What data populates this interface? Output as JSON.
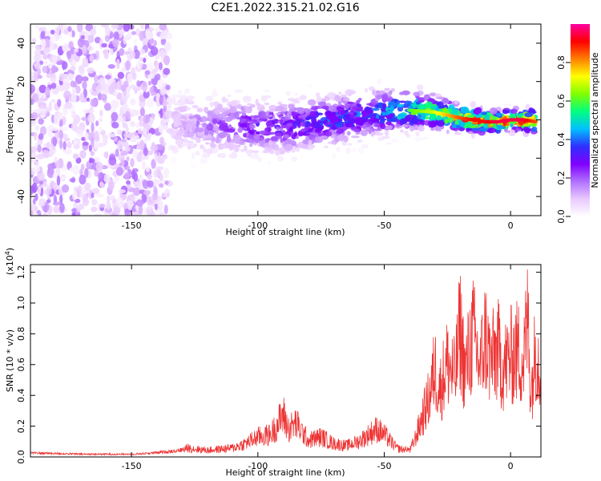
{
  "title": "C2E1.2022.315.21.02.G16",
  "colors": {
    "snr_line": "#ee3333",
    "axes": "#000000",
    "colormap": [
      "#ffffff",
      "#e9c9ff",
      "#b070ff",
      "#7f00ff",
      "#2f2fff",
      "#00c0ff",
      "#00ff80",
      "#80ff00",
      "#ffff00",
      "#ff8000",
      "#ff0000",
      "#ff00a0"
    ]
  },
  "chart_data": [
    {
      "type": "heatmap",
      "xlabel": "Height of straight line (km)",
      "ylabel": "Frequency (Hz)",
      "xlim": [
        -190,
        12
      ],
      "ylim": [
        -50,
        50
      ],
      "x_ticks": [
        -150,
        -100,
        -50,
        0
      ],
      "x_tick_labels": [
        "-150",
        "-100",
        "-50",
        "0"
      ],
      "y_ticks": [
        -40,
        -20,
        0,
        20,
        40
      ],
      "y_tick_labels": [
        "-40",
        "-20",
        "0",
        "20",
        "40"
      ],
      "ridge": {
        "x": [
          -135,
          -110,
          -100,
          -90,
          -80,
          -70,
          -60,
          -50,
          -45,
          -40,
          -30,
          -20,
          -15,
          -10,
          -5,
          0,
          5,
          10
        ],
        "frequency": [
          -2,
          -3,
          -3,
          -4,
          -2,
          0,
          2,
          4,
          5,
          5,
          4,
          1,
          0,
          -1,
          -1,
          0,
          0,
          -1
        ],
        "amplitude": [
          0.1,
          0.25,
          0.3,
          0.3,
          0.35,
          0.4,
          0.4,
          0.45,
          0.5,
          0.6,
          0.7,
          0.85,
          0.9,
          0.9,
          0.95,
          0.95,
          0.95,
          0.85
        ]
      },
      "noise_region": {
        "x": [
          -190,
          -135
        ],
        "frequency_range": [
          -50,
          50
        ]
      },
      "colorbar": {
        "label": "Normalized spectral amplitude",
        "range": [
          0,
          1
        ],
        "ticks": [
          0.0,
          0.2,
          0.4,
          0.6,
          0.8
        ],
        "tick_labels": [
          "0.0",
          "0.2",
          "0.4",
          "0.6",
          "0.8"
        ]
      }
    },
    {
      "type": "line",
      "xlabel": "Height of straight line (km)",
      "ylabel": "SNR (10 * v/v)",
      "exponent_label": "(x10",
      "exponent_power": "4",
      "exponent_close": ")",
      "xlim": [
        -190,
        12
      ],
      "ylim": [
        0,
        1.25
      ],
      "x_ticks": [
        -150,
        -100,
        -50,
        0
      ],
      "x_tick_labels": [
        "-150",
        "-100",
        "-50",
        "0"
      ],
      "y_ticks": [
        0,
        0.2,
        0.4,
        0.6,
        0.8,
        1.0,
        1.2
      ],
      "y_tick_labels": [
        "0.0",
        "0.2",
        "0.4",
        "0.6",
        "0.8",
        "1.0",
        "1.2"
      ],
      "series": [
        {
          "x": [
            -190,
            -170,
            -150,
            -140,
            -130,
            -128,
            -120,
            -110,
            -105,
            -100,
            -95,
            -92,
            -90,
            -88,
            -85,
            -80,
            -75,
            -70,
            -65,
            -60,
            -55,
            -53,
            -50,
            -45,
            -40,
            -38,
            -35,
            -32,
            -30,
            -28,
            -25,
            -22,
            -20,
            -18,
            -15,
            -12,
            -10,
            -8,
            -5,
            -3,
            0,
            3,
            5,
            7,
            8,
            10,
            12
          ],
          "values": [
            0.03,
            0.02,
            0.02,
            0.03,
            0.05,
            0.08,
            0.06,
            0.08,
            0.12,
            0.18,
            0.2,
            0.3,
            0.38,
            0.25,
            0.3,
            0.15,
            0.18,
            0.12,
            0.1,
            0.14,
            0.22,
            0.25,
            0.2,
            0.08,
            0.05,
            0.15,
            0.35,
            0.55,
            0.8,
            0.6,
            0.85,
            0.7,
            1.15,
            0.75,
            1.1,
            0.8,
            1.1,
            0.85,
            0.95,
            0.8,
            0.9,
            0.95,
            0.85,
            1.25,
            0.55,
            1.0,
            0.75
          ]
        }
      ]
    }
  ]
}
